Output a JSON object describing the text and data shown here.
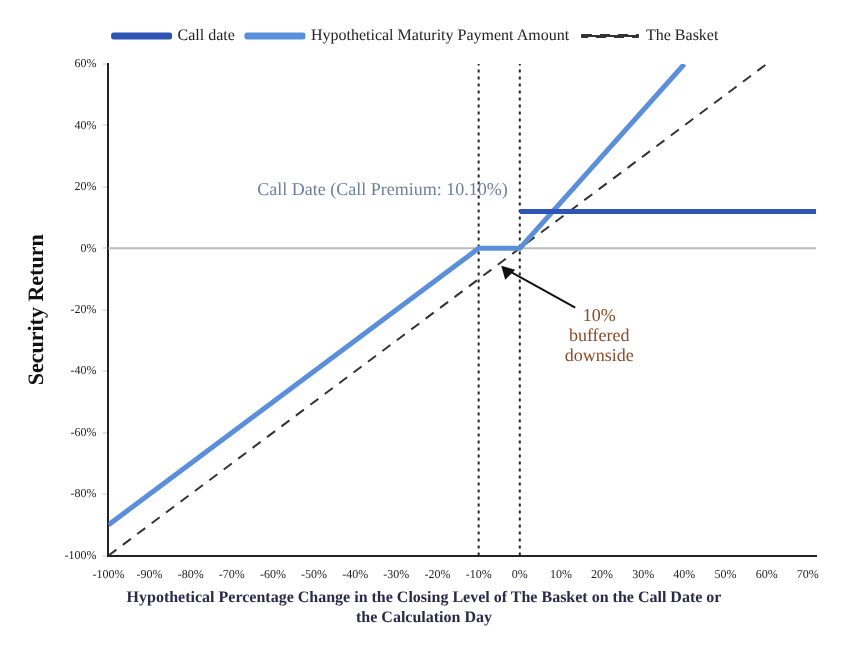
{
  "chart_data": {
    "type": "line",
    "xlabel": "Hypothetical Percentage Change in the Closing Level of The Basket on the Call Date or the Calculation Day",
    "ylabel": "Security Return",
    "series": [
      {
        "name": "Call date",
        "color": "#2f55b4",
        "x": [
          0,
          72
        ],
        "values": [
          12,
          12
        ]
      },
      {
        "name": "Hypothetical Maturity Payment Amount",
        "color": "#5b8fd9",
        "x": [
          -100,
          -10,
          0,
          40
        ],
        "values": [
          -90,
          0,
          0,
          60
        ]
      },
      {
        "name": "The Basket",
        "color": "#333333",
        "x": [
          -100,
          60
        ],
        "values": [
          -100,
          60
        ],
        "line_style": "dashed"
      }
    ],
    "xlim": [
      -100,
      72
    ],
    "ylim": [
      -100,
      60
    ],
    "xticks": [
      {
        "value": -100,
        "label": "-100%"
      },
      {
        "value": -90,
        "label": "-90%"
      },
      {
        "value": -80,
        "label": "-80%"
      },
      {
        "value": -70,
        "label": "-70%"
      },
      {
        "value": -60,
        "label": "-60%"
      },
      {
        "value": -50,
        "label": "-50%"
      },
      {
        "value": -40,
        "label": "-40%"
      },
      {
        "value": -30,
        "label": "-30%"
      },
      {
        "value": -20,
        "label": "-20%"
      },
      {
        "value": -10,
        "label": "-10%"
      },
      {
        "value": 0,
        "label": "0%"
      },
      {
        "value": 10,
        "label": "10%"
      },
      {
        "value": 20,
        "label": "20%"
      },
      {
        "value": 30,
        "label": "30%"
      },
      {
        "value": 40,
        "label": "40%"
      },
      {
        "value": 50,
        "label": "50%"
      },
      {
        "value": 60,
        "label": "60%"
      },
      {
        "value": 70,
        "label": "70%"
      }
    ],
    "yticks": [
      {
        "value": -100,
        "label": "-100%"
      },
      {
        "value": -80,
        "label": "-80%"
      },
      {
        "value": -60,
        "label": "-60%"
      },
      {
        "value": -40,
        "label": "-40%"
      },
      {
        "value": -20,
        "label": "-20%"
      },
      {
        "value": 0,
        "label": "0%"
      },
      {
        "value": 20,
        "label": "20%"
      },
      {
        "value": 40,
        "label": "40%"
      },
      {
        "value": 60,
        "label": "60%"
      }
    ],
    "ref_lines": [
      {
        "axis": "y",
        "value": 0,
        "color": "#bbbbbb",
        "line_style": "solid"
      },
      {
        "axis": "x",
        "value": -10,
        "color": "#222222",
        "line_style": "dotted"
      },
      {
        "axis": "x",
        "value": 0,
        "color": "#222222",
        "line_style": "dotted"
      }
    ],
    "annotations": [
      {
        "text": "Call Date (Call Premium: 10.10%)",
        "x": 0,
        "y": 12
      },
      {
        "text": "10% buffered downside",
        "x": -5,
        "y": -5
      }
    ],
    "legend": "top",
    "marker": "none",
    "line_style": "solid",
    "grid": false
  }
}
